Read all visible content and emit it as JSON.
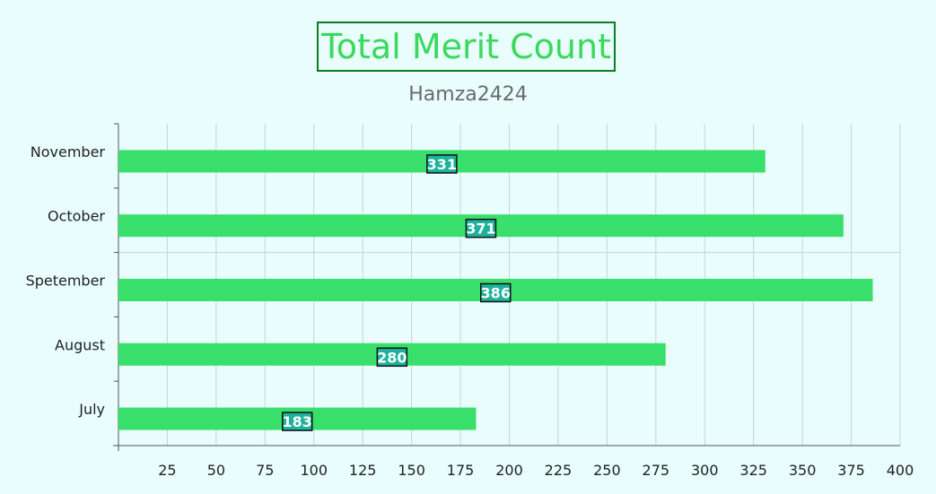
{
  "chart_data": {
    "type": "bar",
    "orientation": "horizontal",
    "title": "Total Merit Count",
    "subtitle": "Hamza2424",
    "categories": [
      "November",
      "October",
      "Spetember",
      "August",
      "July"
    ],
    "values": [
      331,
      371,
      386,
      280,
      183
    ],
    "xlim": [
      0,
      400
    ],
    "xticks": [
      25,
      50,
      75,
      100,
      125,
      150,
      175,
      200,
      225,
      250,
      275,
      300,
      325,
      350,
      375,
      400
    ],
    "grid": true,
    "legend": "none",
    "colors": {
      "bar": "#38df6b",
      "label_bg": "#1cb29b",
      "title": "#3ad95c",
      "title_border": "#0b7d1e",
      "subtitle": "#6b6b6b",
      "background": "#e8fdfc",
      "grid": "#c4d6d6",
      "axis": "#555555"
    }
  }
}
